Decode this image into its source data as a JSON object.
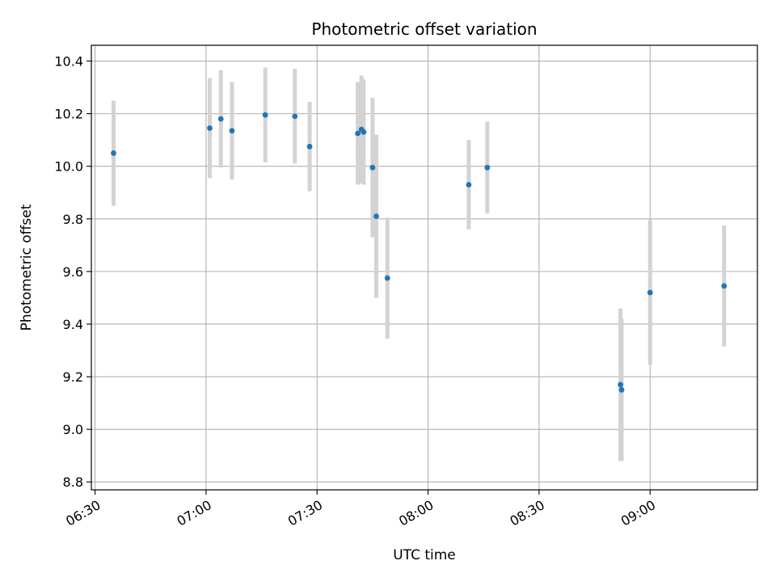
{
  "chart_data": {
    "type": "scatter",
    "title": "Photometric offset variation",
    "xlabel": "UTC time",
    "ylabel": "Photometric offset",
    "x_ticks": [
      "06:30",
      "07:00",
      "07:30",
      "08:00",
      "08:30",
      "09:00"
    ],
    "y_ticks": [
      "8.8",
      "9.0",
      "9.2",
      "9.4",
      "9.6",
      "9.8",
      "10.0",
      "10.2",
      "10.4"
    ],
    "xlim": [
      "06:29",
      "09:29"
    ],
    "ylim": [
      8.77,
      10.46
    ],
    "grid": true,
    "colors": {
      "point": "#1f77b4",
      "errorbar": "#d3d3d3",
      "grid": "#b0b0b0"
    },
    "points": [
      {
        "x": "06:35",
        "y": 10.05,
        "err": 0.2
      },
      {
        "x": "07:01",
        "y": 10.145,
        "err": 0.19
      },
      {
        "x": "07:04",
        "y": 10.18,
        "err": 0.185
      },
      {
        "x": "07:07",
        "y": 10.135,
        "err": 0.185
      },
      {
        "x": "07:16",
        "y": 10.195,
        "err": 0.18
      },
      {
        "x": "07:24",
        "y": 10.19,
        "err": 0.18
      },
      {
        "x": "07:28",
        "y": 10.075,
        "err": 0.17
      },
      {
        "x": "07:41",
        "y": 10.125,
        "err": 0.195
      },
      {
        "x": "07:42",
        "y": 10.14,
        "err": 0.205
      },
      {
        "x": "07:42.6",
        "y": 10.13,
        "err": 0.2
      },
      {
        "x": "07:45",
        "y": 9.995,
        "err": 0.265
      },
      {
        "x": "07:46",
        "y": 9.81,
        "err": 0.31
      },
      {
        "x": "07:49",
        "y": 9.575,
        "err": 0.23
      },
      {
        "x": "08:11",
        "y": 9.93,
        "err": 0.17
      },
      {
        "x": "08:16",
        "y": 9.995,
        "err": 0.175
      },
      {
        "x": "08:52",
        "y": 9.17,
        "err": 0.29
      },
      {
        "x": "08:52.3",
        "y": 9.15,
        "err": 0.27
      },
      {
        "x": "09:00",
        "y": 9.52,
        "err": 0.275
      },
      {
        "x": "09:20",
        "y": 9.545,
        "err": 0.23
      }
    ]
  }
}
